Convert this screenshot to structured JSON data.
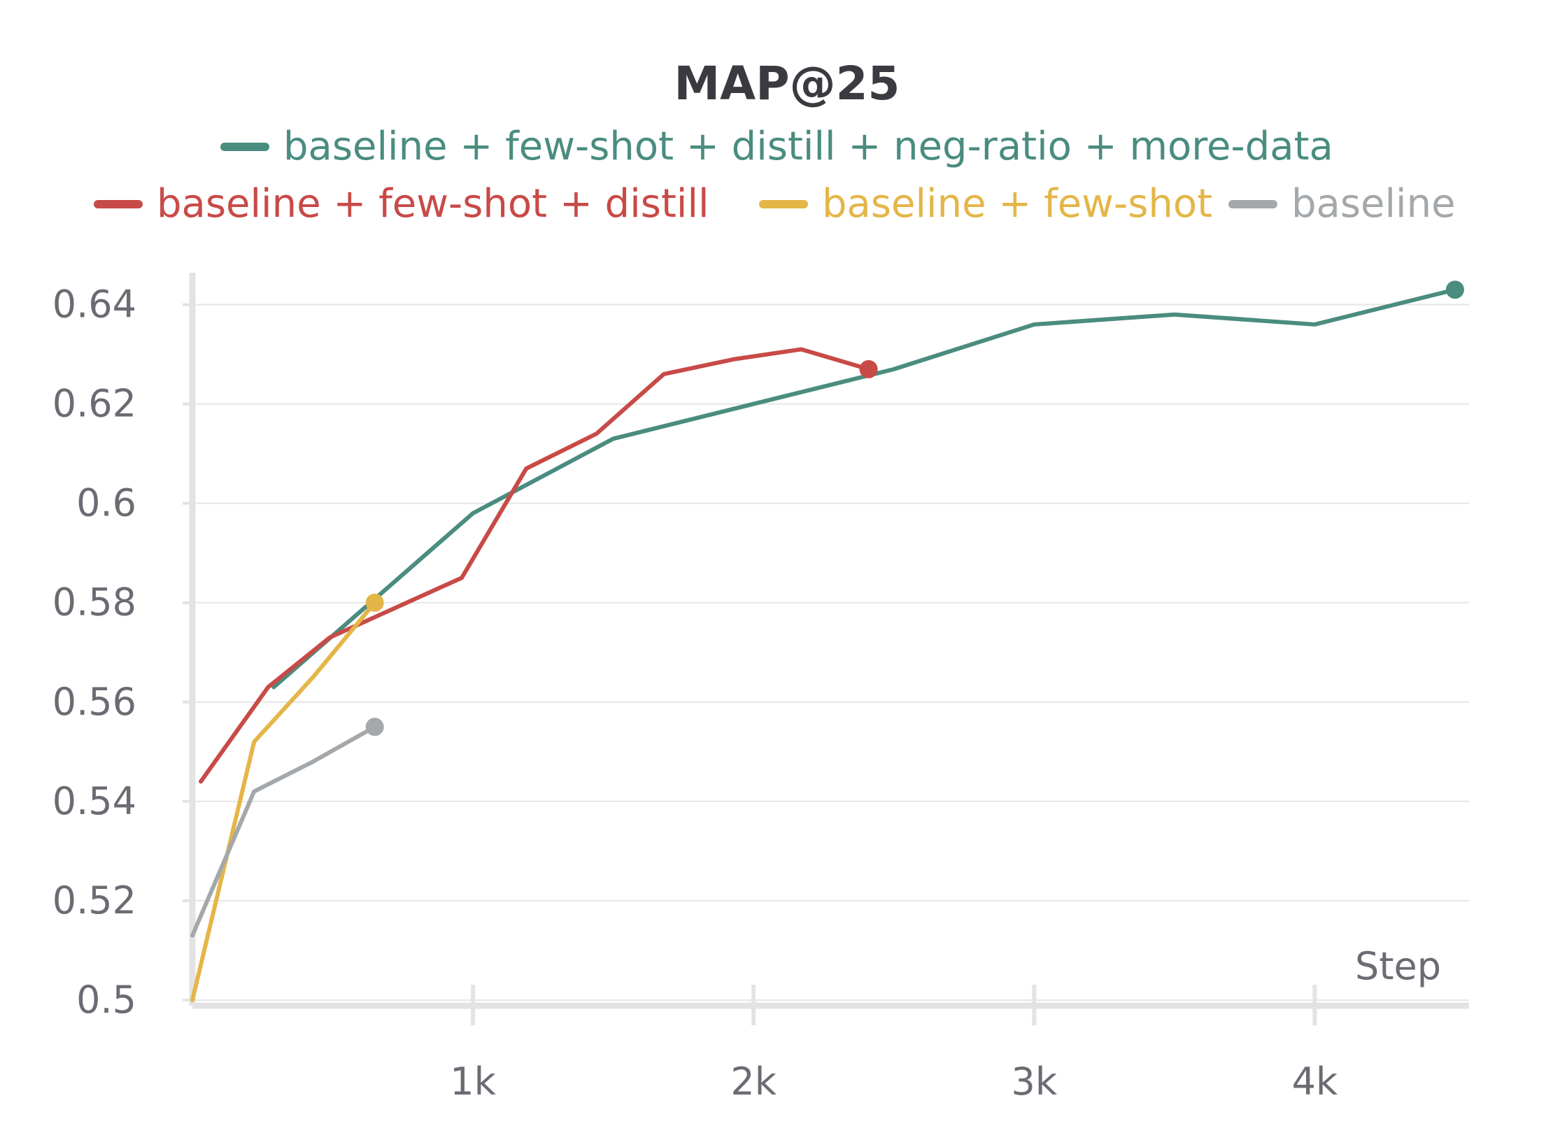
{
  "chart_data": {
    "type": "line",
    "title": "MAP@25",
    "xlabel": "Step",
    "ylabel": "",
    "xlim": [
      0,
      4550
    ],
    "ylim": [
      0.5,
      0.645
    ],
    "grid": true,
    "legend_position": "top",
    "x_ticks": [
      {
        "value": 1000,
        "label": "1k"
      },
      {
        "value": 2000,
        "label": "2k"
      },
      {
        "value": 3000,
        "label": "3k"
      },
      {
        "value": 4000,
        "label": "4k"
      }
    ],
    "y_ticks": [
      {
        "value": 0.5,
        "label": "0.5"
      },
      {
        "value": 0.52,
        "label": "0.52"
      },
      {
        "value": 0.54,
        "label": "0.54"
      },
      {
        "value": 0.56,
        "label": "0.56"
      },
      {
        "value": 0.58,
        "label": "0.58"
      },
      {
        "value": 0.6,
        "label": "0.6"
      },
      {
        "value": 0.62,
        "label": "0.62"
      },
      {
        "value": 0.64,
        "label": "0.64"
      }
    ],
    "series": [
      {
        "name": "baseline + few-shot + distill + neg-ratio + more-data",
        "color": "#4a8c80",
        "x": [
          290,
          1000,
          1500,
          2000,
          2500,
          3000,
          3500,
          4000,
          4500
        ],
        "y": [
          0.563,
          0.598,
          0.613,
          0.62,
          0.627,
          0.636,
          0.638,
          0.636,
          0.643
        ]
      },
      {
        "name": "baseline + few-shot + distill",
        "color": "#c84a47",
        "x": [
          30,
          270,
          490,
          960,
          1190,
          1440,
          1680,
          1930,
          2170,
          2410
        ],
        "y": [
          0.544,
          0.563,
          0.573,
          0.585,
          0.607,
          0.614,
          0.626,
          0.629,
          0.631,
          0.627
        ]
      },
      {
        "name": "baseline + few-shot",
        "color": "#e4b648",
        "x": [
          0,
          220,
          430,
          650
        ],
        "y": [
          0.5,
          0.552,
          0.565,
          0.58
        ]
      },
      {
        "name": "baseline",
        "color": "#a4a8ab",
        "x": [
          0,
          220,
          430,
          650
        ],
        "y": [
          0.513,
          0.542,
          0.548,
          0.555
        ]
      }
    ]
  }
}
